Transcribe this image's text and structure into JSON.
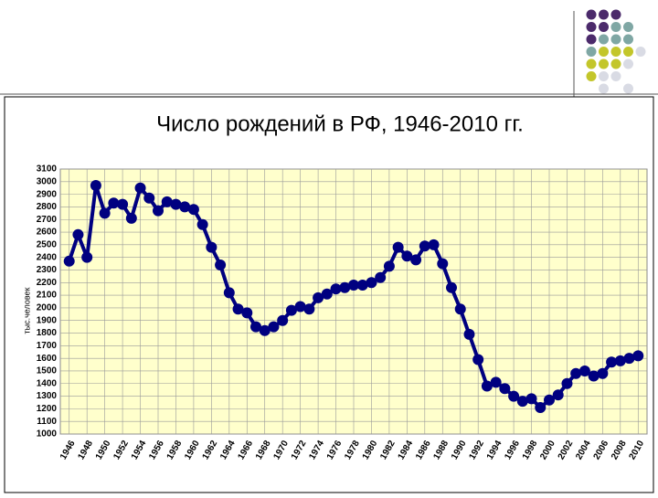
{
  "chart_data": {
    "type": "line",
    "title": "Число рождений в РФ, 1946-2010 гг.",
    "y_label": "тыс.человек",
    "x": [
      1946,
      1947,
      1948,
      1949,
      1950,
      1951,
      1952,
      1953,
      1954,
      1955,
      1956,
      1957,
      1958,
      1959,
      1960,
      1961,
      1962,
      1963,
      1964,
      1965,
      1966,
      1967,
      1968,
      1969,
      1970,
      1971,
      1972,
      1973,
      1974,
      1975,
      1976,
      1977,
      1978,
      1979,
      1980,
      1981,
      1982,
      1983,
      1984,
      1985,
      1986,
      1987,
      1988,
      1989,
      1990,
      1991,
      1992,
      1993,
      1994,
      1995,
      1996,
      1997,
      1998,
      1999,
      2000,
      2001,
      2002,
      2003,
      2004,
      2005,
      2006,
      2007,
      2008,
      2009,
      2010
    ],
    "series": [
      {
        "color": "#000080",
        "values": [
          2370,
          2580,
          2400,
          2970,
          2750,
          2830,
          2820,
          2710,
          2950,
          2870,
          2770,
          2840,
          2820,
          2800,
          2780,
          2660,
          2480,
          2340,
          2120,
          1990,
          1960,
          1850,
          1820,
          1850,
          1900,
          1980,
          2010,
          1990,
          2080,
          2110,
          2150,
          2160,
          2180,
          2180,
          2200,
          2240,
          2330,
          2480,
          2410,
          2380,
          2490,
          2500,
          2350,
          2160,
          1990,
          1790,
          1590,
          1380,
          1410,
          1360,
          1300,
          1260,
          1280,
          1210,
          1270,
          1310,
          1400,
          1480,
          1500,
          1460,
          1480,
          1570,
          1580,
          1600,
          1620
        ]
      }
    ],
    "xlim": [
      1945,
      2011
    ],
    "xticks": [
      1946,
      1948,
      1950,
      1952,
      1954,
      1956,
      1958,
      1960,
      1962,
      1964,
      1966,
      1968,
      1970,
      1972,
      1974,
      1976,
      1978,
      1980,
      1982,
      1984,
      1986,
      1988,
      1990,
      1992,
      1994,
      1996,
      1998,
      2000,
      2002,
      2004,
      2006,
      2008,
      2010
    ],
    "ylim": [
      1000,
      3100
    ],
    "yticks": [
      1000,
      1100,
      1200,
      1300,
      1400,
      1500,
      1600,
      1700,
      1800,
      1900,
      2000,
      2100,
      2200,
      2300,
      2400,
      2500,
      2600,
      2700,
      2800,
      2900,
      3000,
      3100
    ],
    "grid": true,
    "plot_background": "#ffffcc"
  }
}
